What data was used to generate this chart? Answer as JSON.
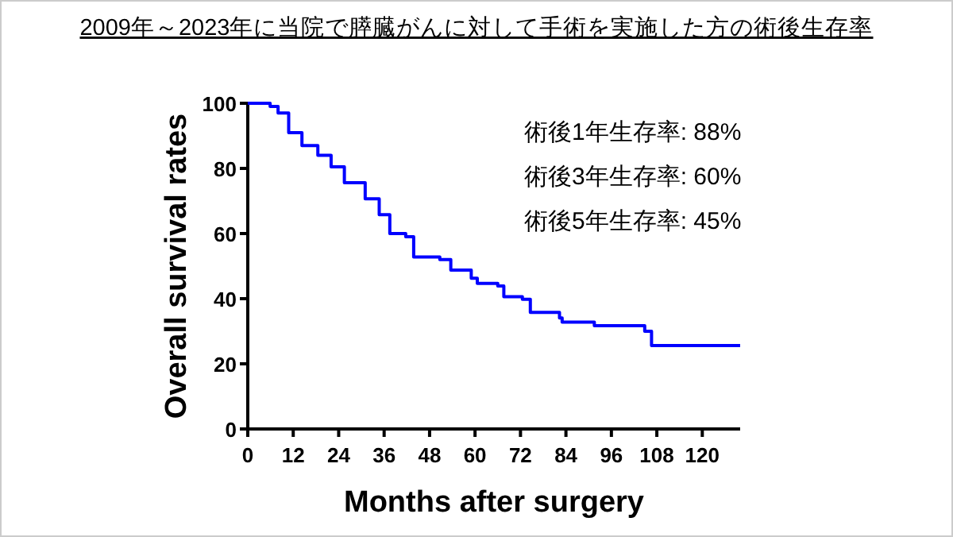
{
  "chart_data": {
    "type": "step",
    "title": "2009年～2023年に当院で膵臓がんに対して手術を実施した方の術後生存率",
    "xlabel": "Months after surgery",
    "ylabel": "Overall survival rates",
    "x": [
      0,
      5.9,
      8,
      10.8,
      14.3,
      18.5,
      22,
      25.5,
      31,
      34.7,
      37.5,
      41.7,
      43.8,
      50.7,
      53.6,
      59,
      60.6,
      66,
      67.6,
      72.5,
      74.6,
      82.3,
      83,
      91.5,
      104.8,
      106.6,
      130
    ],
    "series": [
      {
        "color": "#0000ff",
        "values": [
          100,
          99,
          97,
          91,
          87,
          84,
          80.5,
          75.6,
          70.7,
          65.8,
          60,
          59,
          52.8,
          52,
          48.8,
          46.3,
          44.7,
          43.9,
          40.6,
          39.8,
          35.8,
          34.1,
          32.8,
          31.7,
          30,
          25.6,
          25.6
        ]
      }
    ],
    "xlim": [
      0,
      130
    ],
    "ylim": [
      0,
      100
    ],
    "xticks": [
      0,
      12,
      24,
      36,
      48,
      60,
      72,
      84,
      96,
      108,
      120
    ],
    "yticks": [
      0,
      20,
      40,
      60,
      80,
      100
    ],
    "annotations": [
      "術後1年生存率: 88%",
      "術後3年生存率: 60%",
      "術後5年生存率: 45%"
    ]
  }
}
